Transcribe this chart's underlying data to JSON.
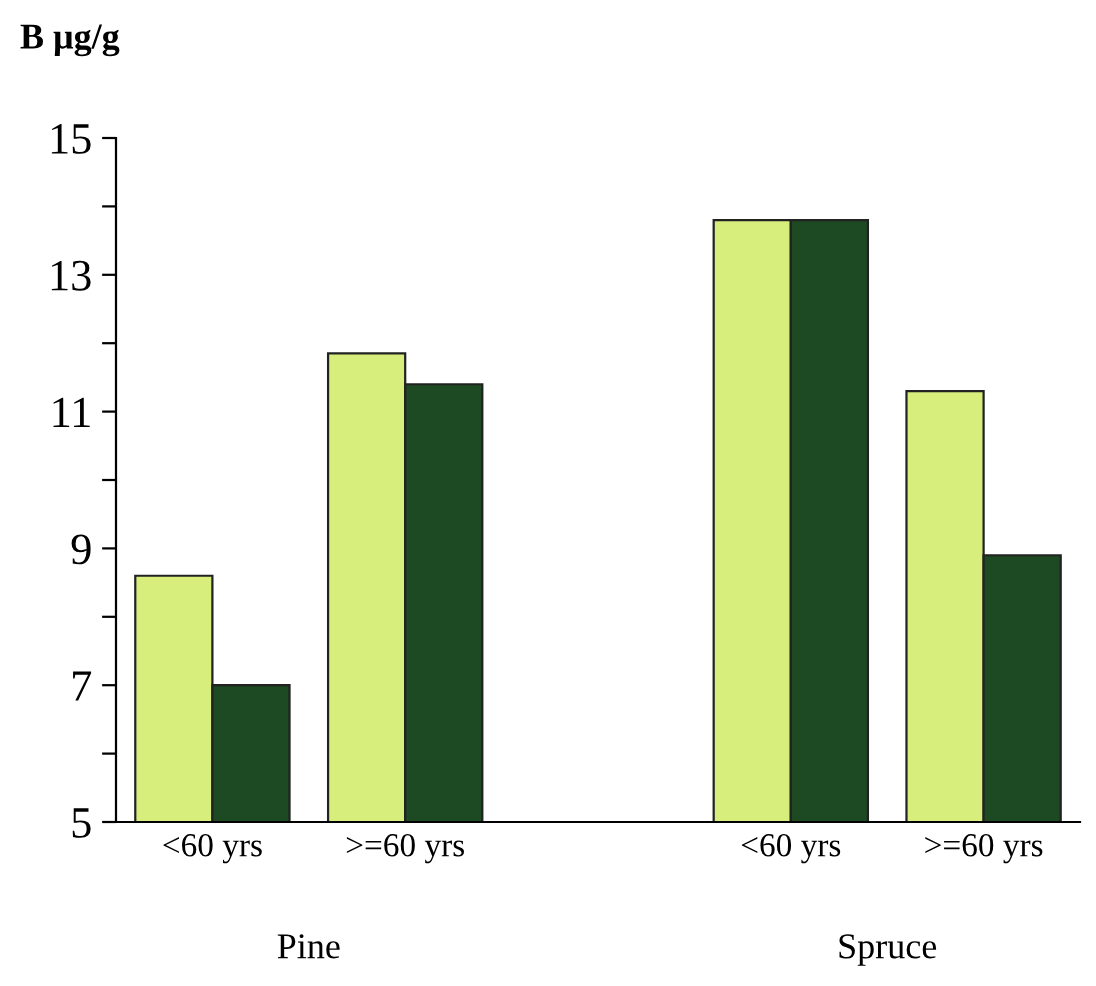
{
  "chart_data": {
    "type": "bar",
    "title": "B μg/g",
    "categories": [
      "<60 yrs",
      ">=60 yrs",
      null,
      "<60 yrs",
      ">=60 yrs"
    ],
    "series": [
      {
        "color": "#d8ee7c",
        "values": [
          8.6,
          11.85,
          null,
          13.8,
          11.3
        ]
      },
      {
        "color": "#1d4a22",
        "values": [
          7.0,
          11.4,
          null,
          13.8,
          8.9
        ]
      }
    ],
    "ylim": [
      5,
      15
    ],
    "yticks": [
      5,
      {
        "value": 6,
        "label": null
      },
      7,
      {
        "value": 8,
        "label": null
      },
      9,
      {
        "value": 10,
        "label": null
      },
      11,
      {
        "value": 12,
        "label": null
      },
      13,
      {
        "value": 14,
        "label": null
      },
      15
    ],
    "annotations": [
      "Pine",
      "Spruce"
    ],
    "grid": false,
    "legend": false
  }
}
